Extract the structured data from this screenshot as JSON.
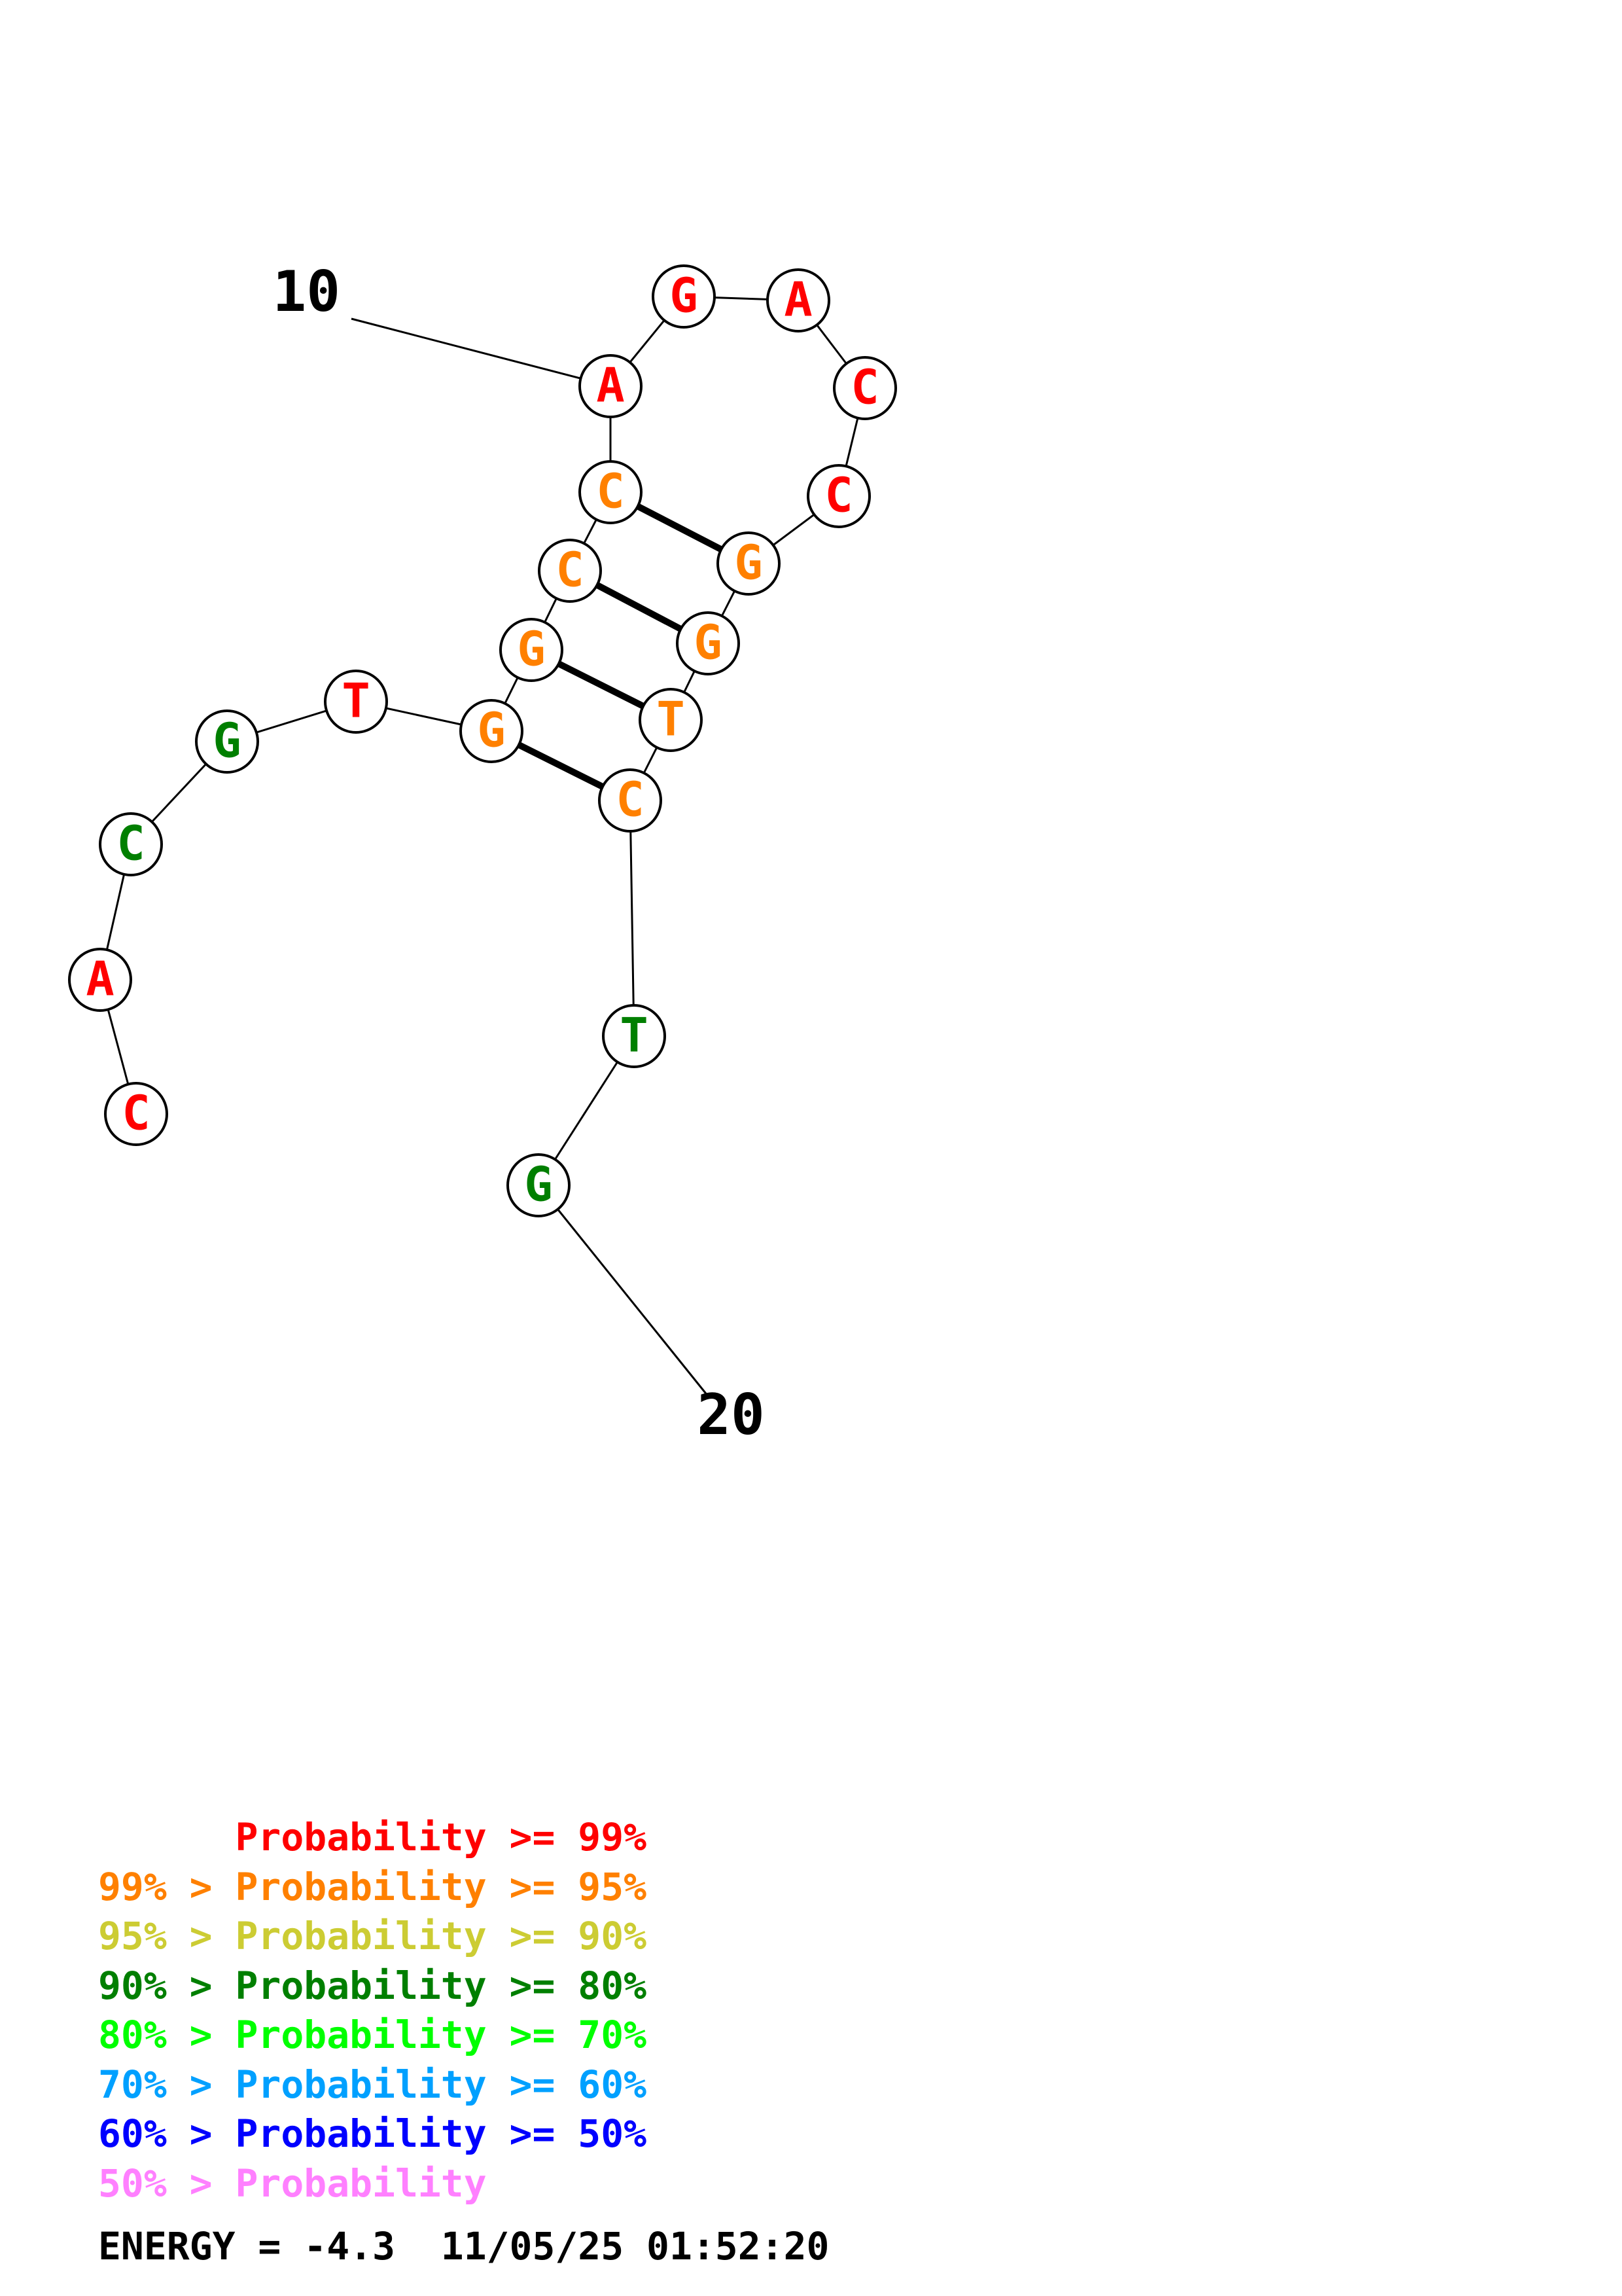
{
  "structure": {
    "nucleotides": [
      {
        "index": 1,
        "base": "C",
        "color": "#ff0000"
      },
      {
        "index": 2,
        "base": "A",
        "color": "#ff0000"
      },
      {
        "index": 3,
        "base": "C",
        "color": "#007f00"
      },
      {
        "index": 4,
        "base": "G",
        "color": "#007f00"
      },
      {
        "index": 5,
        "base": "T",
        "color": "#ff0000"
      },
      {
        "index": 6,
        "base": "G",
        "color": "#ff8000"
      },
      {
        "index": 7,
        "base": "G",
        "color": "#ff8000"
      },
      {
        "index": 8,
        "base": "C",
        "color": "#ff8000"
      },
      {
        "index": 9,
        "base": "C",
        "color": "#ff8000"
      },
      {
        "index": 10,
        "base": "A",
        "color": "#ff0000"
      },
      {
        "index": 11,
        "base": "G",
        "color": "#ff0000"
      },
      {
        "index": 12,
        "base": "A",
        "color": "#ff0000"
      },
      {
        "index": 13,
        "base": "C",
        "color": "#ff0000"
      },
      {
        "index": 14,
        "base": "C",
        "color": "#ff0000"
      },
      {
        "index": 15,
        "base": "G",
        "color": "#ff8000"
      },
      {
        "index": 16,
        "base": "G",
        "color": "#ff8000"
      },
      {
        "index": 17,
        "base": "T",
        "color": "#ff8000"
      },
      {
        "index": 18,
        "base": "C",
        "color": "#ff8000"
      },
      {
        "index": 19,
        "base": "T",
        "color": "#007f00"
      },
      {
        "index": 20,
        "base": "G",
        "color": "#007f00"
      }
    ],
    "base_pairs": [
      [
        6,
        18
      ],
      [
        7,
        17
      ],
      [
        8,
        16
      ],
      [
        9,
        15
      ]
    ],
    "position_labels": [
      {
        "text": "10",
        "index": 10
      },
      {
        "text": "20",
        "index": 20
      }
    ]
  },
  "legend": [
    {
      "prefix": "",
      "label": "Probability",
      "suffix": ">= 99%",
      "color": "#ff0000"
    },
    {
      "prefix": "99% >",
      "label": "Probability",
      "suffix": ">= 95%",
      "color": "#ff8000"
    },
    {
      "prefix": "95% >",
      "label": "Probability",
      "suffix": ">= 90%",
      "color": "#cccc33"
    },
    {
      "prefix": "90% >",
      "label": "Probability",
      "suffix": ">= 80%",
      "color": "#007f00"
    },
    {
      "prefix": "80% >",
      "label": "Probability",
      "suffix": ">= 70%",
      "color": "#00ff00"
    },
    {
      "prefix": "70% >",
      "label": "Probability",
      "suffix": ">= 60%",
      "color": "#00a0ff"
    },
    {
      "prefix": "60% >",
      "label": "Probability",
      "suffix": ">= 50%",
      "color": "#0000ff"
    },
    {
      "prefix": "50% >",
      "label": "Probability",
      "suffix": "",
      "color": "#ff80ff"
    }
  ],
  "energy": "ENERGY = -4.3  11/05/25 01:52:20"
}
